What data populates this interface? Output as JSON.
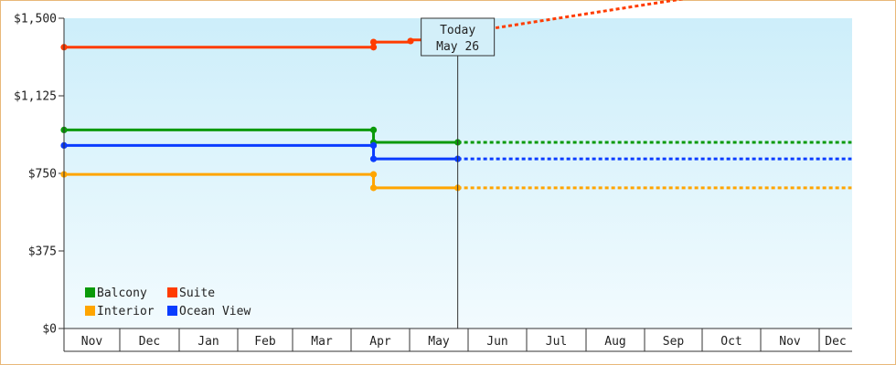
{
  "chart_data": {
    "type": "line",
    "title": "",
    "xlabel": "",
    "ylabel": "",
    "y_ticks": [
      "$0",
      "$375",
      "$750",
      "$1,125",
      "$1,500"
    ],
    "ylim": [
      0,
      1500
    ],
    "months": [
      "Nov",
      "Dec",
      "Jan",
      "Feb",
      "Mar",
      "Apr",
      "May",
      "Jun",
      "Jul",
      "Aug",
      "Sep",
      "Oct",
      "Nov",
      "Dec"
    ],
    "today_marker": {
      "line1": "Today",
      "line2": "May 26"
    },
    "background": {
      "top": "#cdeefa",
      "bottom": "#f2fbfe"
    },
    "legend": [
      {
        "label": "Balcony",
        "color": "#0a9a0a"
      },
      {
        "label": "Suite",
        "color": "#ff3c00"
      },
      {
        "label": "Interior",
        "color": "#ffa500"
      },
      {
        "label": "Ocean View",
        "color": "#0a3cff"
      }
    ],
    "series": [
      {
        "name": "Suite",
        "color": "#ff3c00",
        "history": [
          [
            "Oct 31",
            1360
          ],
          [
            "Apr 12",
            1360
          ],
          [
            "Apr 12",
            1385
          ],
          [
            "Apr 30",
            1385
          ],
          [
            "May 2",
            1395
          ],
          [
            "May 10",
            1395
          ],
          [
            "May 12",
            1425
          ],
          [
            "May 26",
            1425
          ]
        ],
        "markers": [
          [
            "Oct 31",
            1360
          ],
          [
            "Apr 12",
            1360
          ],
          [
            "Apr 12",
            1385
          ],
          [
            "May 1",
            1390
          ],
          [
            "May 11",
            1395
          ],
          [
            "May 12",
            1425
          ],
          [
            "May 26",
            1425
          ]
        ],
        "forecast": [
          [
            "May 26",
            1425
          ],
          [
            "Dec 31",
            1720
          ]
        ]
      },
      {
        "name": "Balcony",
        "color": "#0a9a0a",
        "history": [
          [
            "Oct 31",
            960
          ],
          [
            "Apr 12",
            960
          ],
          [
            "Apr 12",
            900
          ],
          [
            "May 26",
            900
          ]
        ],
        "markers": [
          [
            "Oct 31",
            960
          ],
          [
            "Apr 12",
            960
          ],
          [
            "Apr 12",
            900
          ],
          [
            "May 26",
            900
          ]
        ],
        "forecast": [
          [
            "May 26",
            900
          ],
          [
            "Dec 31",
            900
          ]
        ]
      },
      {
        "name": "Ocean View",
        "color": "#0a3cff",
        "history": [
          [
            "Oct 31",
            885
          ],
          [
            "Apr 12",
            885
          ],
          [
            "Apr 12",
            820
          ],
          [
            "May 26",
            820
          ]
        ],
        "markers": [
          [
            "Oct 31",
            885
          ],
          [
            "Apr 12",
            885
          ],
          [
            "Apr 12",
            820
          ],
          [
            "May 26",
            820
          ]
        ],
        "forecast": [
          [
            "May 26",
            820
          ],
          [
            "Dec 31",
            820
          ]
        ]
      },
      {
        "name": "Interior",
        "color": "#ffa500",
        "history": [
          [
            "Oct 31",
            745
          ],
          [
            "Apr 12",
            745
          ],
          [
            "Apr 12",
            680
          ],
          [
            "May 26",
            680
          ]
        ],
        "markers": [
          [
            "Oct 31",
            745
          ],
          [
            "Apr 12",
            745
          ],
          [
            "Apr 12",
            680
          ],
          [
            "May 26",
            680
          ]
        ],
        "forecast": [
          [
            "May 26",
            680
          ],
          [
            "Dec 31",
            680
          ]
        ]
      }
    ]
  }
}
